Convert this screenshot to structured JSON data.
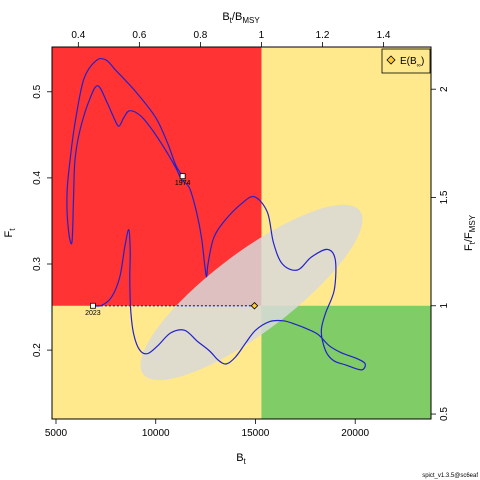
{
  "chart_data": {
    "type": "line",
    "quadrant_colors": {
      "overfished_overfishing": "#ff3333",
      "caution": "#ffe98c",
      "healthy": "#80cc66"
    },
    "series_color": "#2222cc",
    "ellipse_color": "#d9d9d9",
    "axes": {
      "bottom": {
        "label": "B",
        "label_sub": "t",
        "ticks": [
          5000,
          10000,
          15000,
          20000
        ],
        "lim": [
          4800,
          23800
        ]
      },
      "left": {
        "label": "F",
        "label_sub": "t",
        "ticks": [
          "0.2",
          "0.3",
          "0.4",
          "0.5"
        ],
        "tick_values": [
          0.2,
          0.3,
          0.4,
          0.5
        ],
        "lim": [
          0.12,
          0.552
        ]
      },
      "top": {
        "label": "B",
        "label_sub": "t",
        "label_mid": "/B",
        "label_sub2": "MSY",
        "ticks": [
          "0.4",
          "0.6",
          "0.8",
          "1",
          "1.2",
          "1.4"
        ],
        "tick_values": [
          0.4,
          0.6,
          0.8,
          1.0,
          1.2,
          1.4
        ]
      },
      "right": {
        "label": "F",
        "label_sub": "t",
        "label_mid": "/F",
        "label_sub2": "MSY",
        "ticks": [
          "0.5",
          "1",
          "1.5",
          "2"
        ],
        "tick_values": [
          0.5,
          1.0,
          1.5,
          2.0
        ]
      }
    },
    "reference": {
      "Bmsy": 15300,
      "Fmsy": 0.2515
    },
    "trajectory": [
      [
        11350,
        0.402
      ],
      [
        11000,
        0.415
      ],
      [
        10600,
        0.44
      ],
      [
        10000,
        0.47
      ],
      [
        9000,
        0.5
      ],
      [
        8000,
        0.525
      ],
      [
        7500,
        0.537
      ],
      [
        7000,
        0.536
      ],
      [
        6400,
        0.515
      ],
      [
        6000,
        0.47
      ],
      [
        5700,
        0.42
      ],
      [
        5550,
        0.38
      ],
      [
        5620,
        0.34
      ],
      [
        5800,
        0.325
      ],
      [
        5880,
        0.375
      ],
      [
        5950,
        0.42
      ],
      [
        6200,
        0.455
      ],
      [
        6700,
        0.492
      ],
      [
        7100,
        0.507
      ],
      [
        7550,
        0.488
      ],
      [
        7900,
        0.47
      ],
      [
        8150,
        0.46
      ],
      [
        8400,
        0.47
      ],
      [
        8700,
        0.478
      ],
      [
        9250,
        0.472
      ],
      [
        9850,
        0.455
      ],
      [
        10500,
        0.432
      ],
      [
        11000,
        0.412
      ],
      [
        11300,
        0.398
      ],
      [
        11700,
        0.388
      ],
      [
        12050,
        0.36
      ],
      [
        12300,
        0.33
      ],
      [
        12450,
        0.3
      ],
      [
        12550,
        0.285
      ],
      [
        12620,
        0.3
      ],
      [
        12900,
        0.33
      ],
      [
        13450,
        0.35
      ],
      [
        14300,
        0.37
      ],
      [
        14950,
        0.378
      ],
      [
        15600,
        0.36
      ],
      [
        15900,
        0.325
      ],
      [
        16350,
        0.3
      ],
      [
        17100,
        0.293
      ],
      [
        17800,
        0.308
      ],
      [
        18600,
        0.317
      ],
      [
        19000,
        0.305
      ],
      [
        18950,
        0.27
      ],
      [
        18500,
        0.242
      ],
      [
        18300,
        0.222
      ],
      [
        18500,
        0.2
      ],
      [
        18900,
        0.188
      ],
      [
        19500,
        0.183
      ],
      [
        20300,
        0.177
      ],
      [
        20500,
        0.184
      ],
      [
        20100,
        0.19
      ],
      [
        19300,
        0.197
      ],
      [
        18700,
        0.205
      ],
      [
        18150,
        0.218
      ],
      [
        17550,
        0.225
      ],
      [
        17000,
        0.23
      ],
      [
        16400,
        0.234
      ],
      [
        15700,
        0.233
      ],
      [
        15000,
        0.223
      ],
      [
        14500,
        0.208
      ],
      [
        14000,
        0.192
      ],
      [
        13550,
        0.184
      ],
      [
        13150,
        0.188
      ],
      [
        12700,
        0.199
      ],
      [
        12100,
        0.21
      ],
      [
        11450,
        0.223
      ],
      [
        10750,
        0.22
      ],
      [
        10100,
        0.205
      ],
      [
        9600,
        0.196
      ],
      [
        9200,
        0.2
      ],
      [
        8900,
        0.218
      ],
      [
        8750,
        0.245
      ],
      [
        8700,
        0.282
      ],
      [
        8720,
        0.315
      ],
      [
        8650,
        0.34
      ],
      [
        8450,
        0.32
      ],
      [
        8200,
        0.285
      ],
      [
        7800,
        0.262
      ],
      [
        7300,
        0.252
      ],
      [
        6850,
        0.2515
      ]
    ],
    "start_label": "1974",
    "end_label": "2023",
    "projection": {
      "from": [
        6850,
        0.2515
      ],
      "to": [
        14950,
        0.2515
      ]
    },
    "ellipse": {
      "center": [
        14800,
        0.267
      ],
      "radius_x": 6800,
      "radius_y": 0.0465,
      "angle_deg": -37
    },
    "legend": {
      "symbol": "diamond",
      "label_main": "E(B",
      "label_sub": "∞",
      "label_end": ")",
      "position": "top-right"
    }
  },
  "footer": "spict_v1.3.5@sc6eaf"
}
